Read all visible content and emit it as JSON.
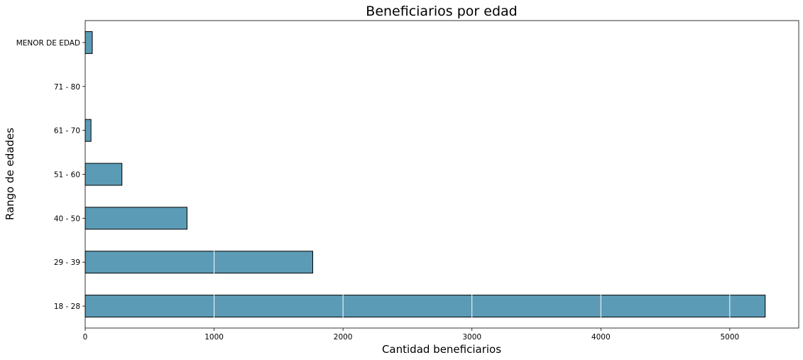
{
  "chart_data": {
    "type": "bar",
    "orientation": "horizontal",
    "title": "Beneficiarios por edad",
    "xlabel": "Cantidad beneficiarios",
    "ylabel": "Rango de edades",
    "categories": [
      "18 - 28",
      "29 - 39",
      "40 - 50",
      "51 - 60",
      "61 - 70",
      "71 - 80",
      "MENOR DE EDAD"
    ],
    "values": [
      5275,
      1765,
      790,
      285,
      45,
      0,
      55
    ],
    "xlim": [
      0,
      5535
    ],
    "xticks": [
      0,
      1000,
      2000,
      3000,
      4000,
      5000
    ],
    "grid": true,
    "legend": "none",
    "bar_color": "#5b9bb5",
    "edge_color": "#000000",
    "grid_color": "#ffffff"
  }
}
